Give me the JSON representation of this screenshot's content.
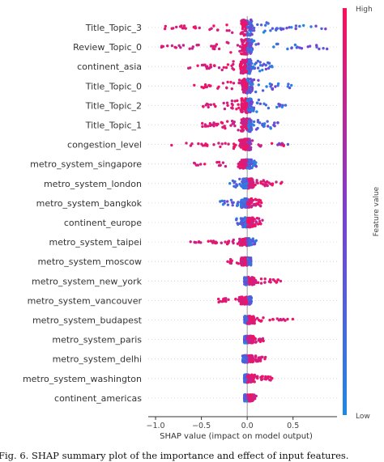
{
  "chart_data": {
    "type": "scatter",
    "subtype": "shap-beeswarm",
    "features": [
      {
        "name": "Title_Topic_3",
        "min": -0.98,
        "max": 0.9,
        "width": 1.0,
        "low_side": "right"
      },
      {
        "name": "Review_Topic_0",
        "min": -0.95,
        "max": 0.88,
        "width": 1.0,
        "low_side": "right"
      },
      {
        "name": "continent_asia",
        "min": -0.68,
        "max": 0.28,
        "width": 0.85,
        "low_side": "right"
      },
      {
        "name": "Title_Topic_0",
        "min": -0.58,
        "max": 0.5,
        "width": 0.85,
        "low_side": "right"
      },
      {
        "name": "Title_Topic_2",
        "min": -0.5,
        "max": 0.42,
        "width": 0.85,
        "low_side": "right"
      },
      {
        "name": "Title_Topic_1",
        "min": -0.5,
        "max": 0.35,
        "width": 0.8,
        "low_side": "right"
      },
      {
        "name": "congestion_level",
        "min": -0.85,
        "max": 0.5,
        "width": 0.6,
        "low_side": "mixed"
      },
      {
        "name": "metro_system_singapore",
        "min": -0.58,
        "max": 0.1,
        "width": 0.45,
        "low_side": "right"
      },
      {
        "name": "metro_system_london",
        "min": -0.2,
        "max": 0.38,
        "width": 0.5,
        "low_side": "left"
      },
      {
        "name": "metro_system_bangkok",
        "min": -0.3,
        "max": 0.16,
        "width": 0.45,
        "low_side": "left"
      },
      {
        "name": "continent_europe",
        "min": -0.12,
        "max": 0.17,
        "width": 0.55,
        "low_side": "left"
      },
      {
        "name": "metro_system_taipei",
        "min": -0.63,
        "max": 0.1,
        "width": 0.3,
        "low_side": "right"
      },
      {
        "name": "metro_system_moscow",
        "min": -0.22,
        "max": 0.04,
        "width": 0.35,
        "low_side": "right"
      },
      {
        "name": "metro_system_new_york",
        "min": -0.03,
        "max": 0.38,
        "width": 0.35,
        "low_side": "left"
      },
      {
        "name": "metro_system_vancouver",
        "min": -0.32,
        "max": 0.06,
        "width": 0.35,
        "low_side": "right"
      },
      {
        "name": "metro_system_budapest",
        "min": -0.03,
        "max": 0.52,
        "width": 0.35,
        "low_side": "left"
      },
      {
        "name": "metro_system_paris",
        "min": -0.03,
        "max": 0.18,
        "width": 0.3,
        "low_side": "left"
      },
      {
        "name": "metro_system_delhi",
        "min": -0.05,
        "max": 0.2,
        "width": 0.3,
        "low_side": "left"
      },
      {
        "name": "metro_system_washington",
        "min": -0.03,
        "max": 0.28,
        "width": 0.35,
        "low_side": "left"
      },
      {
        "name": "continent_americas",
        "min": -0.03,
        "max": 0.1,
        "width": 0.3,
        "low_side": "left"
      }
    ],
    "xlabel": "SHAP value (impact on model output)",
    "xlim": [
      -1.08,
      0.98
    ],
    "xticks": [
      -1.0,
      -0.5,
      0.0,
      0.5
    ],
    "xtick_labels": [
      "−1.0",
      "−0.5",
      "0.0",
      "0.5"
    ],
    "colorbar": {
      "label": "Feature value",
      "high": "High",
      "low": "Low"
    },
    "colors": {
      "low": "#1e88e5",
      "mid": "#7b3fd1",
      "high": "#ff0d57"
    },
    "grid": false
  },
  "caption": "Fig. 6.   SHAP summary plot of the importance and effect of input features."
}
